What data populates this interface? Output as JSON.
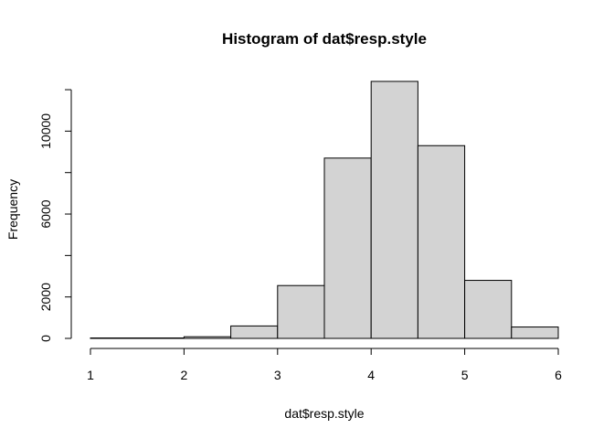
{
  "chart_data": {
    "type": "bar",
    "title": "Histogram of dat$resp.style",
    "xlabel": "dat$resp.style",
    "ylabel": "Frequency",
    "bins": [
      {
        "start": 1.0,
        "end": 1.5,
        "count": 5
      },
      {
        "start": 1.5,
        "end": 2.0,
        "count": 10
      },
      {
        "start": 2.0,
        "end": 2.5,
        "count": 80
      },
      {
        "start": 2.5,
        "end": 3.0,
        "count": 600
      },
      {
        "start": 3.0,
        "end": 3.5,
        "count": 2550
      },
      {
        "start": 3.5,
        "end": 4.0,
        "count": 8700
      },
      {
        "start": 4.0,
        "end": 4.5,
        "count": 12400
      },
      {
        "start": 4.5,
        "end": 5.0,
        "count": 9300
      },
      {
        "start": 5.0,
        "end": 5.5,
        "count": 2800
      },
      {
        "start": 5.5,
        "end": 6.0,
        "count": 550
      }
    ],
    "xlim": [
      1,
      6
    ],
    "ylim": [
      0,
      12400
    ],
    "x_ticks": [
      1,
      2,
      3,
      4,
      5,
      6
    ],
    "y_ticks": [
      0,
      2000,
      6000,
      10000
    ],
    "y_minor_ticks": [
      4000,
      8000,
      12000
    ],
    "grid": false,
    "colors": {
      "bar_fill": "#d3d3d3",
      "bar_stroke": "#000000"
    }
  }
}
